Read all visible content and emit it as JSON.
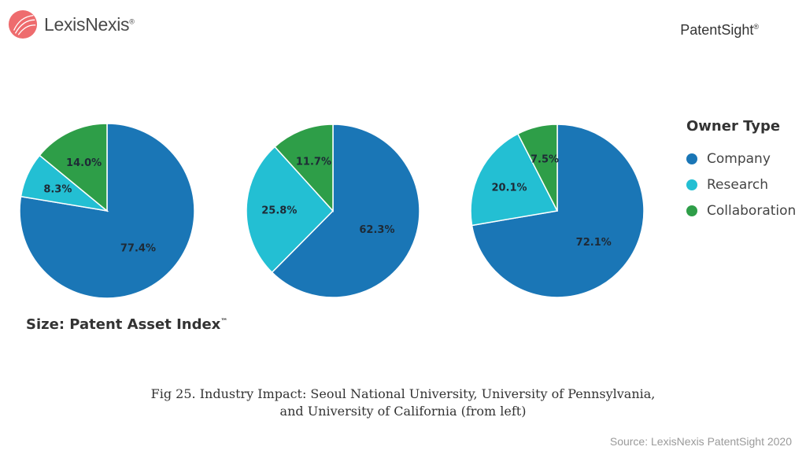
{
  "header": {
    "logo_text": "LexisNexis",
    "logo_mark": "®",
    "partner_text": "PatentSight",
    "partner_mark": "®"
  },
  "legend": {
    "title": "Owner Type",
    "items": [
      {
        "label": "Company",
        "color": "#1a76b6"
      },
      {
        "label": "Research",
        "color": "#23bfd3"
      },
      {
        "label": "Collaboration",
        "color": "#2e9e48"
      }
    ]
  },
  "size_note": {
    "text": "Size:  Patent Asset Index",
    "mark": "™"
  },
  "caption": {
    "line1": "Fig 25. Industry Impact: Seoul National University, University of Pennsylvania,",
    "line2": "and University of California (from left)"
  },
  "source": "Source: LexisNexis PatentSight 2020",
  "chart_data": [
    {
      "type": "pie",
      "categories": [
        "Company",
        "Research",
        "Collaboration"
      ],
      "values": [
        77.4,
        8.3,
        14.0
      ],
      "labels": [
        "77.4%",
        "8.3%",
        "14.0%"
      ],
      "colors": [
        "#1a76b6",
        "#23bfd3",
        "#2e9e48"
      ]
    },
    {
      "type": "pie",
      "categories": [
        "Company",
        "Research",
        "Collaboration"
      ],
      "values": [
        62.3,
        25.8,
        11.7
      ],
      "labels": [
        "62.3%",
        "25.8%",
        "11.7%"
      ],
      "colors": [
        "#1a76b6",
        "#23bfd3",
        "#2e9e48"
      ]
    },
    {
      "type": "pie",
      "categories": [
        "Company",
        "Research",
        "Collaboration"
      ],
      "values": [
        72.1,
        20.1,
        7.5
      ],
      "labels": [
        "72.1%",
        "20.1%",
        "7.5%"
      ],
      "colors": [
        "#1a76b6",
        "#23bfd3",
        "#2e9e48"
      ]
    }
  ]
}
